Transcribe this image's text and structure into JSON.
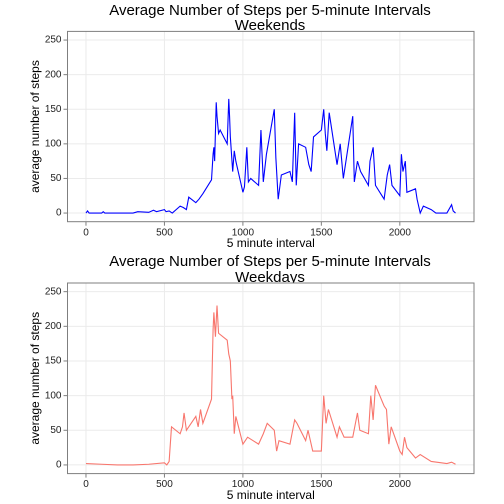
{
  "chart_data": [
    {
      "type": "line",
      "title": "Average Number of Steps per 5-minute Intervals",
      "subtitle": "Weekends",
      "xlabel": "5 minute interval",
      "ylabel": "average number of steps",
      "xlim": [
        -117.75,
        2472.75
      ],
      "ylim": [
        -12.5,
        262.5
      ],
      "xticks": [
        0,
        500,
        1000,
        1500,
        2000
      ],
      "yticks": [
        0,
        50,
        100,
        150,
        200,
        250
      ],
      "grid": true,
      "series": [
        {
          "name": "weekend",
          "color": "#0000ff",
          "x": [
            0,
            10,
            20,
            100,
            110,
            120,
            300,
            330,
            400,
            430,
            450,
            500,
            510,
            530,
            550,
            600,
            620,
            640,
            655,
            700,
            720,
            745,
            800,
            810,
            815,
            820,
            830,
            835,
            845,
            855,
            900,
            910,
            915,
            920,
            935,
            945,
            955,
            1000,
            1010,
            1025,
            1035,
            1050,
            1100,
            1115,
            1130,
            1150,
            1200,
            1210,
            1225,
            1245,
            1300,
            1315,
            1330,
            1340,
            1355,
            1400,
            1420,
            1435,
            1450,
            1500,
            1515,
            1525,
            1535,
            1550,
            1600,
            1620,
            1640,
            1700,
            1710,
            1730,
            1750,
            1800,
            1810,
            1830,
            1845,
            1900,
            1920,
            1935,
            1950,
            2000,
            2010,
            2020,
            2035,
            2045,
            2100,
            2110,
            2130,
            2150,
            2200,
            2230,
            2300,
            2330,
            2340,
            2355
          ],
          "values": [
            0,
            3,
            0,
            0,
            2,
            0,
            0,
            2,
            1,
            4,
            2,
            5,
            2,
            3,
            0,
            10,
            8,
            5,
            23,
            15,
            20,
            28,
            48,
            85,
            95,
            75,
            160,
            140,
            115,
            120,
            100,
            165,
            140,
            110,
            60,
            90,
            75,
            30,
            38,
            95,
            45,
            50,
            40,
            120,
            45,
            85,
            150,
            80,
            20,
            55,
            60,
            45,
            145,
            40,
            100,
            95,
            70,
            60,
            110,
            120,
            150,
            115,
            90,
            145,
            70,
            100,
            50,
            140,
            45,
            75,
            60,
            40,
            75,
            95,
            40,
            20,
            55,
            70,
            40,
            25,
            85,
            60,
            75,
            30,
            35,
            20,
            0,
            10,
            5,
            0,
            0,
            12,
            3,
            0
          ]
        }
      ]
    },
    {
      "type": "line",
      "title": "Average Number of Steps per 5-minute Intervals",
      "subtitle": "Weekdays",
      "xlabel": "5 minute interval",
      "ylabel": "average number of steps",
      "xlim": [
        -117.75,
        2472.75
      ],
      "ylim": [
        -12.5,
        262.5
      ],
      "xticks": [
        0,
        500,
        1000,
        1500,
        2000
      ],
      "yticks": [
        0,
        50,
        100,
        150,
        200,
        250
      ],
      "grid": true,
      "series": [
        {
          "name": "weekday",
          "color": "#f8766d",
          "x": [
            0,
            100,
            200,
            300,
            400,
            500,
            515,
            530,
            545,
            600,
            615,
            625,
            640,
            700,
            715,
            730,
            745,
            800,
            810,
            815,
            825,
            835,
            845,
            900,
            910,
            920,
            930,
            935,
            945,
            955,
            1000,
            1030,
            1100,
            1130,
            1155,
            1200,
            1215,
            1230,
            1300,
            1330,
            1345,
            1400,
            1415,
            1445,
            1500,
            1515,
            1530,
            1545,
            1600,
            1615,
            1645,
            1700,
            1730,
            1745,
            1800,
            1815,
            1830,
            1845,
            1900,
            1915,
            1930,
            1945,
            2000,
            2015,
            2030,
            2045,
            2100,
            2130,
            2200,
            2300,
            2330,
            2355
          ],
          "values": [
            2,
            1,
            0,
            0,
            1,
            3,
            0,
            5,
            55,
            45,
            55,
            75,
            50,
            70,
            55,
            80,
            60,
            95,
            195,
            220,
            185,
            230,
            190,
            180,
            160,
            150,
            95,
            100,
            45,
            70,
            30,
            40,
            30,
            45,
            60,
            50,
            20,
            35,
            30,
            65,
            60,
            35,
            50,
            20,
            20,
            100,
            60,
            80,
            40,
            55,
            40,
            40,
            75,
            50,
            45,
            100,
            65,
            115,
            85,
            80,
            30,
            55,
            20,
            15,
            40,
            25,
            10,
            15,
            5,
            2,
            4,
            1
          ]
        }
      ]
    }
  ]
}
